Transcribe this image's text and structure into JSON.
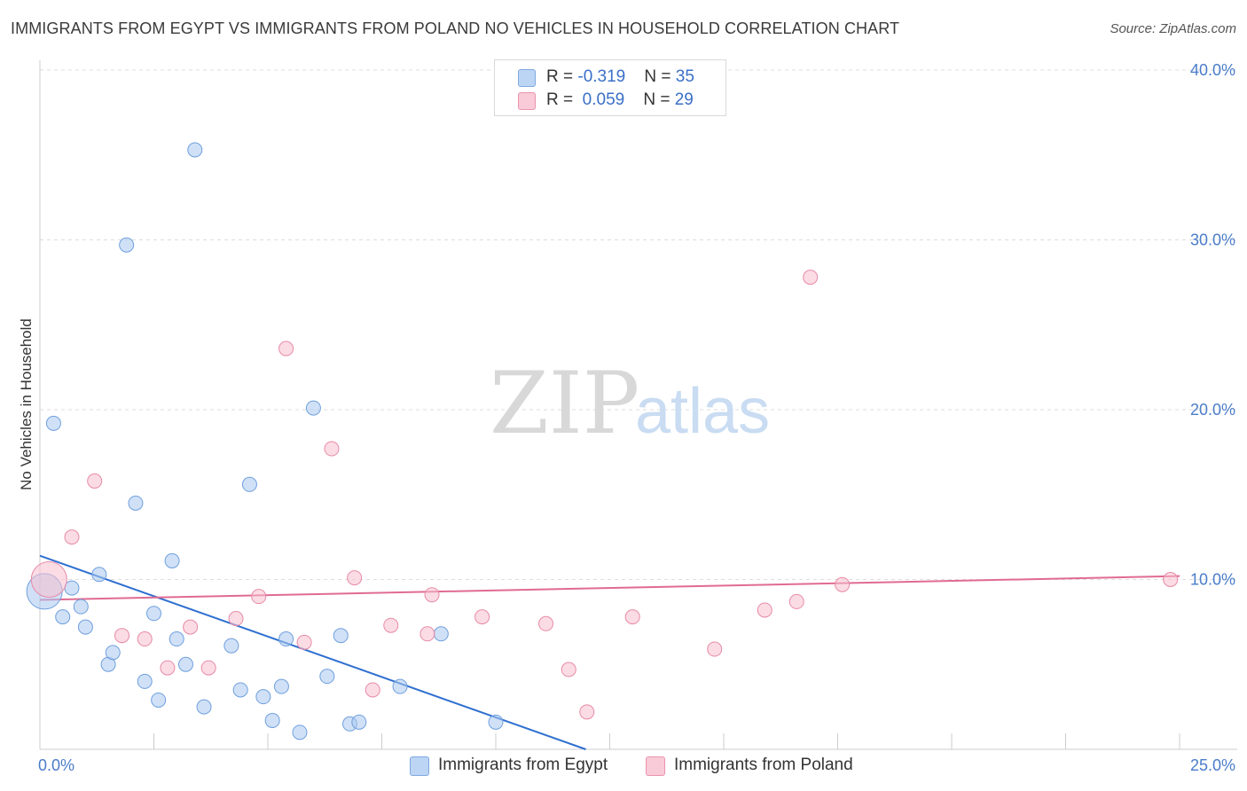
{
  "title": "IMMIGRANTS FROM EGYPT VS IMMIGRANTS FROM POLAND NO VEHICLES IN HOUSEHOLD CORRELATION CHART",
  "source": "Source: ZipAtlas.com",
  "watermark": {
    "zip": "ZIP",
    "atlas": "atlas"
  },
  "legend": {
    "rows": [
      {
        "r_label": "R = ",
        "r_value": "-0.319",
        "n_label": "N = ",
        "n_value": "35"
      },
      {
        "r_label": "R = ",
        "r_value": " 0.059",
        "n_label": "N = ",
        "n_value": "29"
      }
    ]
  },
  "chart_data": {
    "type": "scatter",
    "title": "IMMIGRANTS FROM EGYPT VS IMMIGRANTS FROM POLAND NO VEHICLES IN HOUSEHOLD CORRELATION CHART",
    "xlabel": "",
    "ylabel": "No Vehicles in Household",
    "xlim": [
      0,
      25
    ],
    "ylim": [
      0,
      40
    ],
    "x_tick_labels": [
      {
        "value": 0,
        "label": "0.0%"
      },
      {
        "value": 25,
        "label": "25.0%"
      }
    ],
    "y_tick_labels": [
      {
        "value": 10,
        "label": "10.0%"
      },
      {
        "value": 20,
        "label": "20.0%"
      },
      {
        "value": 30,
        "label": "30.0%"
      },
      {
        "value": 40,
        "label": "40.0%"
      }
    ],
    "grid": true,
    "series": [
      {
        "name": "Immigrants from Egypt",
        "color": "#a9c8f0",
        "stroke": "#6f9fdd",
        "line_color": "#2f6fd0",
        "trend": {
          "x0": 0,
          "y0": 11.4,
          "x1": 12.5,
          "y1": -0.5
        },
        "points": [
          {
            "x": 0.1,
            "y": 9.3,
            "big": true
          },
          {
            "x": 0.3,
            "y": 19.2
          },
          {
            "x": 0.5,
            "y": 7.8
          },
          {
            "x": 0.7,
            "y": 9.5
          },
          {
            "x": 0.9,
            "y": 8.4
          },
          {
            "x": 1.0,
            "y": 7.2
          },
          {
            "x": 1.3,
            "y": 10.3
          },
          {
            "x": 1.5,
            "y": 5.0
          },
          {
            "x": 1.6,
            "y": 5.7
          },
          {
            "x": 1.9,
            "y": 29.7
          },
          {
            "x": 2.1,
            "y": 14.5
          },
          {
            "x": 2.3,
            "y": 4.0
          },
          {
            "x": 2.5,
            "y": 8.0
          },
          {
            "x": 2.6,
            "y": 2.9
          },
          {
            "x": 2.9,
            "y": 11.1
          },
          {
            "x": 3.0,
            "y": 6.5
          },
          {
            "x": 3.2,
            "y": 5.0
          },
          {
            "x": 3.4,
            "y": 35.3
          },
          {
            "x": 3.6,
            "y": 2.5
          },
          {
            "x": 4.2,
            "y": 6.1
          },
          {
            "x": 4.4,
            "y": 3.5
          },
          {
            "x": 4.6,
            "y": 15.6
          },
          {
            "x": 4.9,
            "y": 3.1
          },
          {
            "x": 5.1,
            "y": 1.7
          },
          {
            "x": 5.3,
            "y": 3.7
          },
          {
            "x": 5.4,
            "y": 6.5
          },
          {
            "x": 5.7,
            "y": 1.0
          },
          {
            "x": 6.0,
            "y": 20.1
          },
          {
            "x": 6.3,
            "y": 4.3
          },
          {
            "x": 6.6,
            "y": 6.7
          },
          {
            "x": 6.8,
            "y": 1.5
          },
          {
            "x": 7.0,
            "y": 1.6
          },
          {
            "x": 7.9,
            "y": 3.7
          },
          {
            "x": 8.8,
            "y": 6.8
          },
          {
            "x": 10.0,
            "y": 1.6
          }
        ]
      },
      {
        "name": "Immigrants from Poland",
        "color": "#f7c0d0",
        "stroke": "#e88aa6",
        "line_color": "#e06b92",
        "trend": {
          "x0": 0,
          "y0": 8.8,
          "x1": 25,
          "y1": 10.2
        },
        "points": [
          {
            "x": 0.2,
            "y": 10.0,
            "big": true
          },
          {
            "x": 0.7,
            "y": 12.5
          },
          {
            "x": 1.2,
            "y": 15.8
          },
          {
            "x": 1.8,
            "y": 6.7
          },
          {
            "x": 2.3,
            "y": 6.5
          },
          {
            "x": 2.8,
            "y": 4.8
          },
          {
            "x": 3.3,
            "y": 7.2
          },
          {
            "x": 3.7,
            "y": 4.8
          },
          {
            "x": 4.3,
            "y": 7.7
          },
          {
            "x": 4.8,
            "y": 9.0
          },
          {
            "x": 5.4,
            "y": 23.6
          },
          {
            "x": 5.8,
            "y": 6.3
          },
          {
            "x": 6.4,
            "y": 17.7
          },
          {
            "x": 6.9,
            "y": 10.1
          },
          {
            "x": 7.3,
            "y": 3.5
          },
          {
            "x": 7.7,
            "y": 7.3
          },
          {
            "x": 8.5,
            "y": 6.8
          },
          {
            "x": 8.6,
            "y": 9.1
          },
          {
            "x": 9.7,
            "y": 7.8
          },
          {
            "x": 11.1,
            "y": 7.4
          },
          {
            "x": 11.6,
            "y": 4.7
          },
          {
            "x": 12.0,
            "y": 2.2
          },
          {
            "x": 13.0,
            "y": 7.8
          },
          {
            "x": 14.8,
            "y": 5.9
          },
          {
            "x": 15.9,
            "y": 8.2
          },
          {
            "x": 16.6,
            "y": 8.7
          },
          {
            "x": 16.9,
            "y": 27.8
          },
          {
            "x": 17.6,
            "y": 9.7
          },
          {
            "x": 24.8,
            "y": 10.0
          }
        ]
      }
    ]
  }
}
